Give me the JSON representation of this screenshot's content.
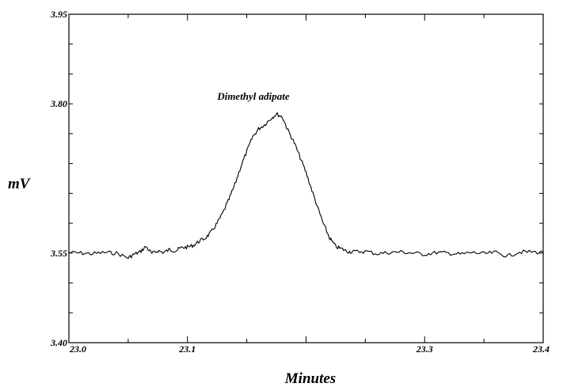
{
  "chart_data": {
    "type": "line",
    "title": "",
    "xlabel": "Minutes",
    "ylabel": "mV",
    "xlim": [
      23.0,
      23.4
    ],
    "ylim": [
      3.4,
      3.95
    ],
    "x_ticks": [
      "23.0",
      "23.1",
      "23.3",
      "23.4"
    ],
    "x_tick_values": [
      23.0,
      23.1,
      23.3,
      23.4
    ],
    "y_ticks": [
      "3.95",
      "3.80",
      "3.55",
      "3.40"
    ],
    "y_tick_values": [
      3.95,
      3.8,
      3.55,
      3.4
    ],
    "grid": false,
    "annotations": [
      {
        "text": "Dimethyl adipate",
        "x": 23.17,
        "y": 3.807
      }
    ],
    "series": [
      {
        "x": [
          23.0,
          23.01,
          23.02,
          23.03,
          23.04,
          23.05,
          23.055,
          23.06,
          23.065,
          23.07,
          23.075,
          23.08,
          23.085,
          23.09,
          23.095,
          23.1,
          23.105,
          23.11,
          23.115,
          23.12,
          23.125,
          23.13,
          23.135,
          23.14,
          23.145,
          23.15,
          23.155,
          23.16,
          23.165,
          23.17,
          23.175,
          23.18,
          23.185,
          23.19,
          23.195,
          23.2,
          23.205,
          23.21,
          23.215,
          23.22,
          23.225,
          23.23,
          23.235,
          23.24,
          23.25,
          23.26,
          23.27,
          23.28,
          23.29,
          23.3,
          23.31,
          23.32,
          23.33,
          23.34,
          23.35,
          23.36,
          23.37,
          23.38,
          23.39,
          23.4
        ],
        "y": [
          3.551,
          3.55,
          3.549,
          3.551,
          3.55,
          3.542,
          3.548,
          3.552,
          3.561,
          3.549,
          3.554,
          3.551,
          3.556,
          3.554,
          3.559,
          3.56,
          3.563,
          3.57,
          3.575,
          3.585,
          3.6,
          3.618,
          3.64,
          3.665,
          3.695,
          3.72,
          3.745,
          3.758,
          3.765,
          3.775,
          3.783,
          3.778,
          3.755,
          3.735,
          3.71,
          3.685,
          3.655,
          3.625,
          3.597,
          3.575,
          3.561,
          3.557,
          3.553,
          3.552,
          3.553,
          3.549,
          3.551,
          3.552,
          3.55,
          3.548,
          3.551,
          3.55,
          3.548,
          3.551,
          3.549,
          3.551,
          3.545,
          3.552,
          3.552,
          3.551
        ]
      }
    ]
  }
}
